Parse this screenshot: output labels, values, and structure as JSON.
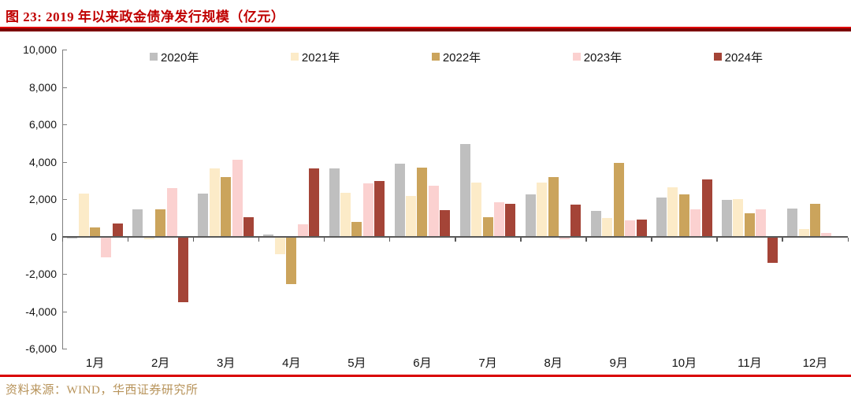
{
  "header": {
    "title": "图 23:  2019 年以来政金债净发行规模（亿元）"
  },
  "footer": {
    "source": "资料来源：WIND，华西证券研究所"
  },
  "chart_data": {
    "type": "bar",
    "title": "2019 年以来政金债净发行规模（亿元）",
    "unit": "亿元",
    "grid": false,
    "legend_position": "top",
    "xlabel": "",
    "ylabel": "",
    "ylim": [
      -6000,
      10000
    ],
    "y_ticks": [
      10000,
      8000,
      6000,
      4000,
      2000,
      0,
      -2000,
      -4000,
      -6000
    ],
    "y_tick_labels": [
      "10,000",
      "8,000",
      "6,000",
      "4,000",
      "2,000",
      "0",
      "-2,000",
      "-4,000",
      "-6,000"
    ],
    "categories": [
      "1月",
      "2月",
      "3月",
      "4月",
      "5月",
      "6月",
      "7月",
      "8月",
      "9月",
      "10月",
      "11月",
      "12月"
    ],
    "series": [
      {
        "name": "2020年",
        "color": "#bfbfbf",
        "values": [
          -100,
          1450,
          2300,
          100,
          3650,
          3900,
          4950,
          2250,
          1350,
          2100,
          1950,
          1500
        ]
      },
      {
        "name": "2021年",
        "color": "#fcebc8",
        "values": [
          2300,
          -150,
          3650,
          -950,
          2350,
          2150,
          2900,
          2900,
          1000,
          2650,
          2000,
          400
        ]
      },
      {
        "name": "2022年",
        "color": "#cba45c",
        "values": [
          500,
          1450,
          3200,
          -2550,
          800,
          3700,
          1050,
          3200,
          3950,
          2250,
          1250,
          1750
        ]
      },
      {
        "name": "2023年",
        "color": "#fbd1d0",
        "values": [
          -1100,
          2600,
          4100,
          650,
          2850,
          2700,
          1850,
          -150,
          850,
          1450,
          1450,
          200
        ]
      },
      {
        "name": "2024年",
        "color": "#a44437",
        "values": [
          700,
          -3500,
          1050,
          3650,
          2950,
          1400,
          1750,
          1700,
          900,
          3050,
          -1400,
          null
        ]
      }
    ],
    "axis_colors": {
      "axis_line": "#7f7f7f",
      "zero_line": "#595959"
    }
  }
}
